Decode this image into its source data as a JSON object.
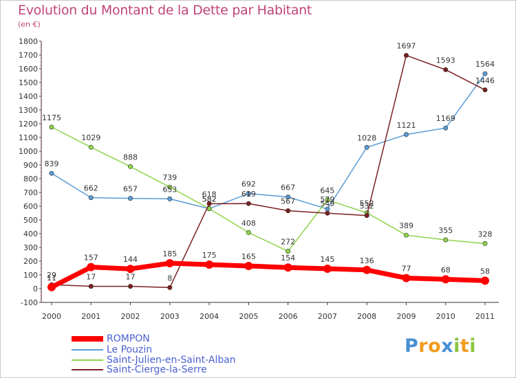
{
  "title": "Evolution du Montant de la Dette par Habitant",
  "subtitle": "(en €)",
  "logo": {
    "text": "Proxiti",
    "letters": [
      {
        "ch": "P",
        "color": "#4a8fd4"
      },
      {
        "ch": "r",
        "color": "#f29b1e"
      },
      {
        "ch": "o",
        "color": "#f29b1e"
      },
      {
        "ch": "x",
        "color": "#4a8fd4"
      },
      {
        "ch": "i",
        "color": "#8cc43c"
      },
      {
        "ch": "t",
        "color": "#f29b1e"
      },
      {
        "ch": "i",
        "color": "#8cc43c"
      }
    ]
  },
  "chart_data": {
    "type": "line",
    "x": [
      2000,
      2001,
      2002,
      2003,
      2004,
      2005,
      2006,
      2007,
      2008,
      2009,
      2010,
      2011
    ],
    "x_tick_labels": [
      "2000",
      "2001",
      "2002",
      "2003",
      "2004",
      "2005",
      "2006",
      "2007",
      "2008",
      "2009",
      "2010",
      "2011"
    ],
    "ylim": [
      -100,
      1800
    ],
    "y_ticks": [
      -100,
      0,
      100,
      200,
      300,
      400,
      500,
      600,
      700,
      800,
      900,
      1000,
      1100,
      1200,
      1300,
      1400,
      1500,
      1600,
      1700,
      1800
    ],
    "grid": false,
    "legend_placement": "bottom-left",
    "series": [
      {
        "name": "ROMPON",
        "color": "#ff0000",
        "values": [
          11,
          157,
          144,
          185,
          175,
          165,
          154,
          145,
          136,
          77,
          68,
          58
        ],
        "labels": [
          "11",
          "157",
          "144",
          "185",
          "175",
          "165",
          "154",
          "145",
          "136",
          "77",
          "68",
          "58"
        ]
      },
      {
        "name": "Le Pouzin",
        "color": "#5b9bd5",
        "values": [
          839,
          662,
          657,
          653,
          582,
          692,
          667,
          579,
          1028,
          1121,
          1169,
          1564
        ],
        "labels": [
          "839",
          "662",
          "657",
          "653",
          "582",
          "692",
          "667",
          "579",
          "1028",
          "1121",
          "1169",
          "1564"
        ]
      },
      {
        "name": "Saint-Julien-en-Saint-Alban",
        "color": "#8ed44a",
        "values": [
          1175,
          1029,
          888,
          739,
          582,
          408,
          272,
          645,
          552,
          389,
          355,
          328
        ],
        "labels": [
          "1175",
          "1029",
          "888",
          "739",
          "582",
          "408",
          "272",
          "645",
          "552",
          "389",
          "355",
          "328"
        ]
      },
      {
        "name": "Saint-Cierge-la-Serre",
        "color": "#7a1f1f",
        "values": [
          29,
          17,
          17,
          8,
          618,
          619,
          567,
          549,
          532,
          1697,
          1593,
          1446
        ],
        "labels": [
          "29",
          "17",
          "17",
          "8",
          "618",
          "619",
          "567",
          "549",
          "532",
          "1697",
          "1593",
          "1446"
        ]
      }
    ]
  }
}
